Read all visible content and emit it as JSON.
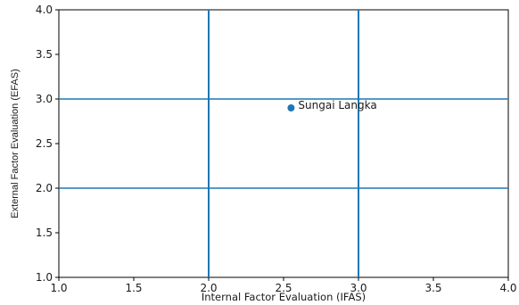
{
  "chart_data": {
    "type": "scatter",
    "title": "",
    "xlabel": "Internal Factor Evaluation (IFAS)",
    "ylabel": "External Factor Evaluation (EFAS)",
    "xlim": [
      1.0,
      4.0
    ],
    "ylim": [
      1.0,
      4.0
    ],
    "x_ticks": [
      "1.0",
      "1.5",
      "2.0",
      "2.5",
      "3.0",
      "3.5",
      "4.0"
    ],
    "y_ticks": [
      "1.0",
      "1.5",
      "2.0",
      "2.5",
      "3.0",
      "3.5",
      "4.0"
    ],
    "grid": false,
    "reference_lines": {
      "vertical": [
        2.0,
        3.0
      ],
      "horizontal": [
        2.0,
        3.0
      ]
    },
    "points": [
      {
        "x": 2.55,
        "y": 2.9,
        "label": "Sungai Langka"
      }
    ],
    "colors": {
      "point": "#1f77b4",
      "reference_line": "#1f77b4",
      "axes": "#000000"
    }
  }
}
